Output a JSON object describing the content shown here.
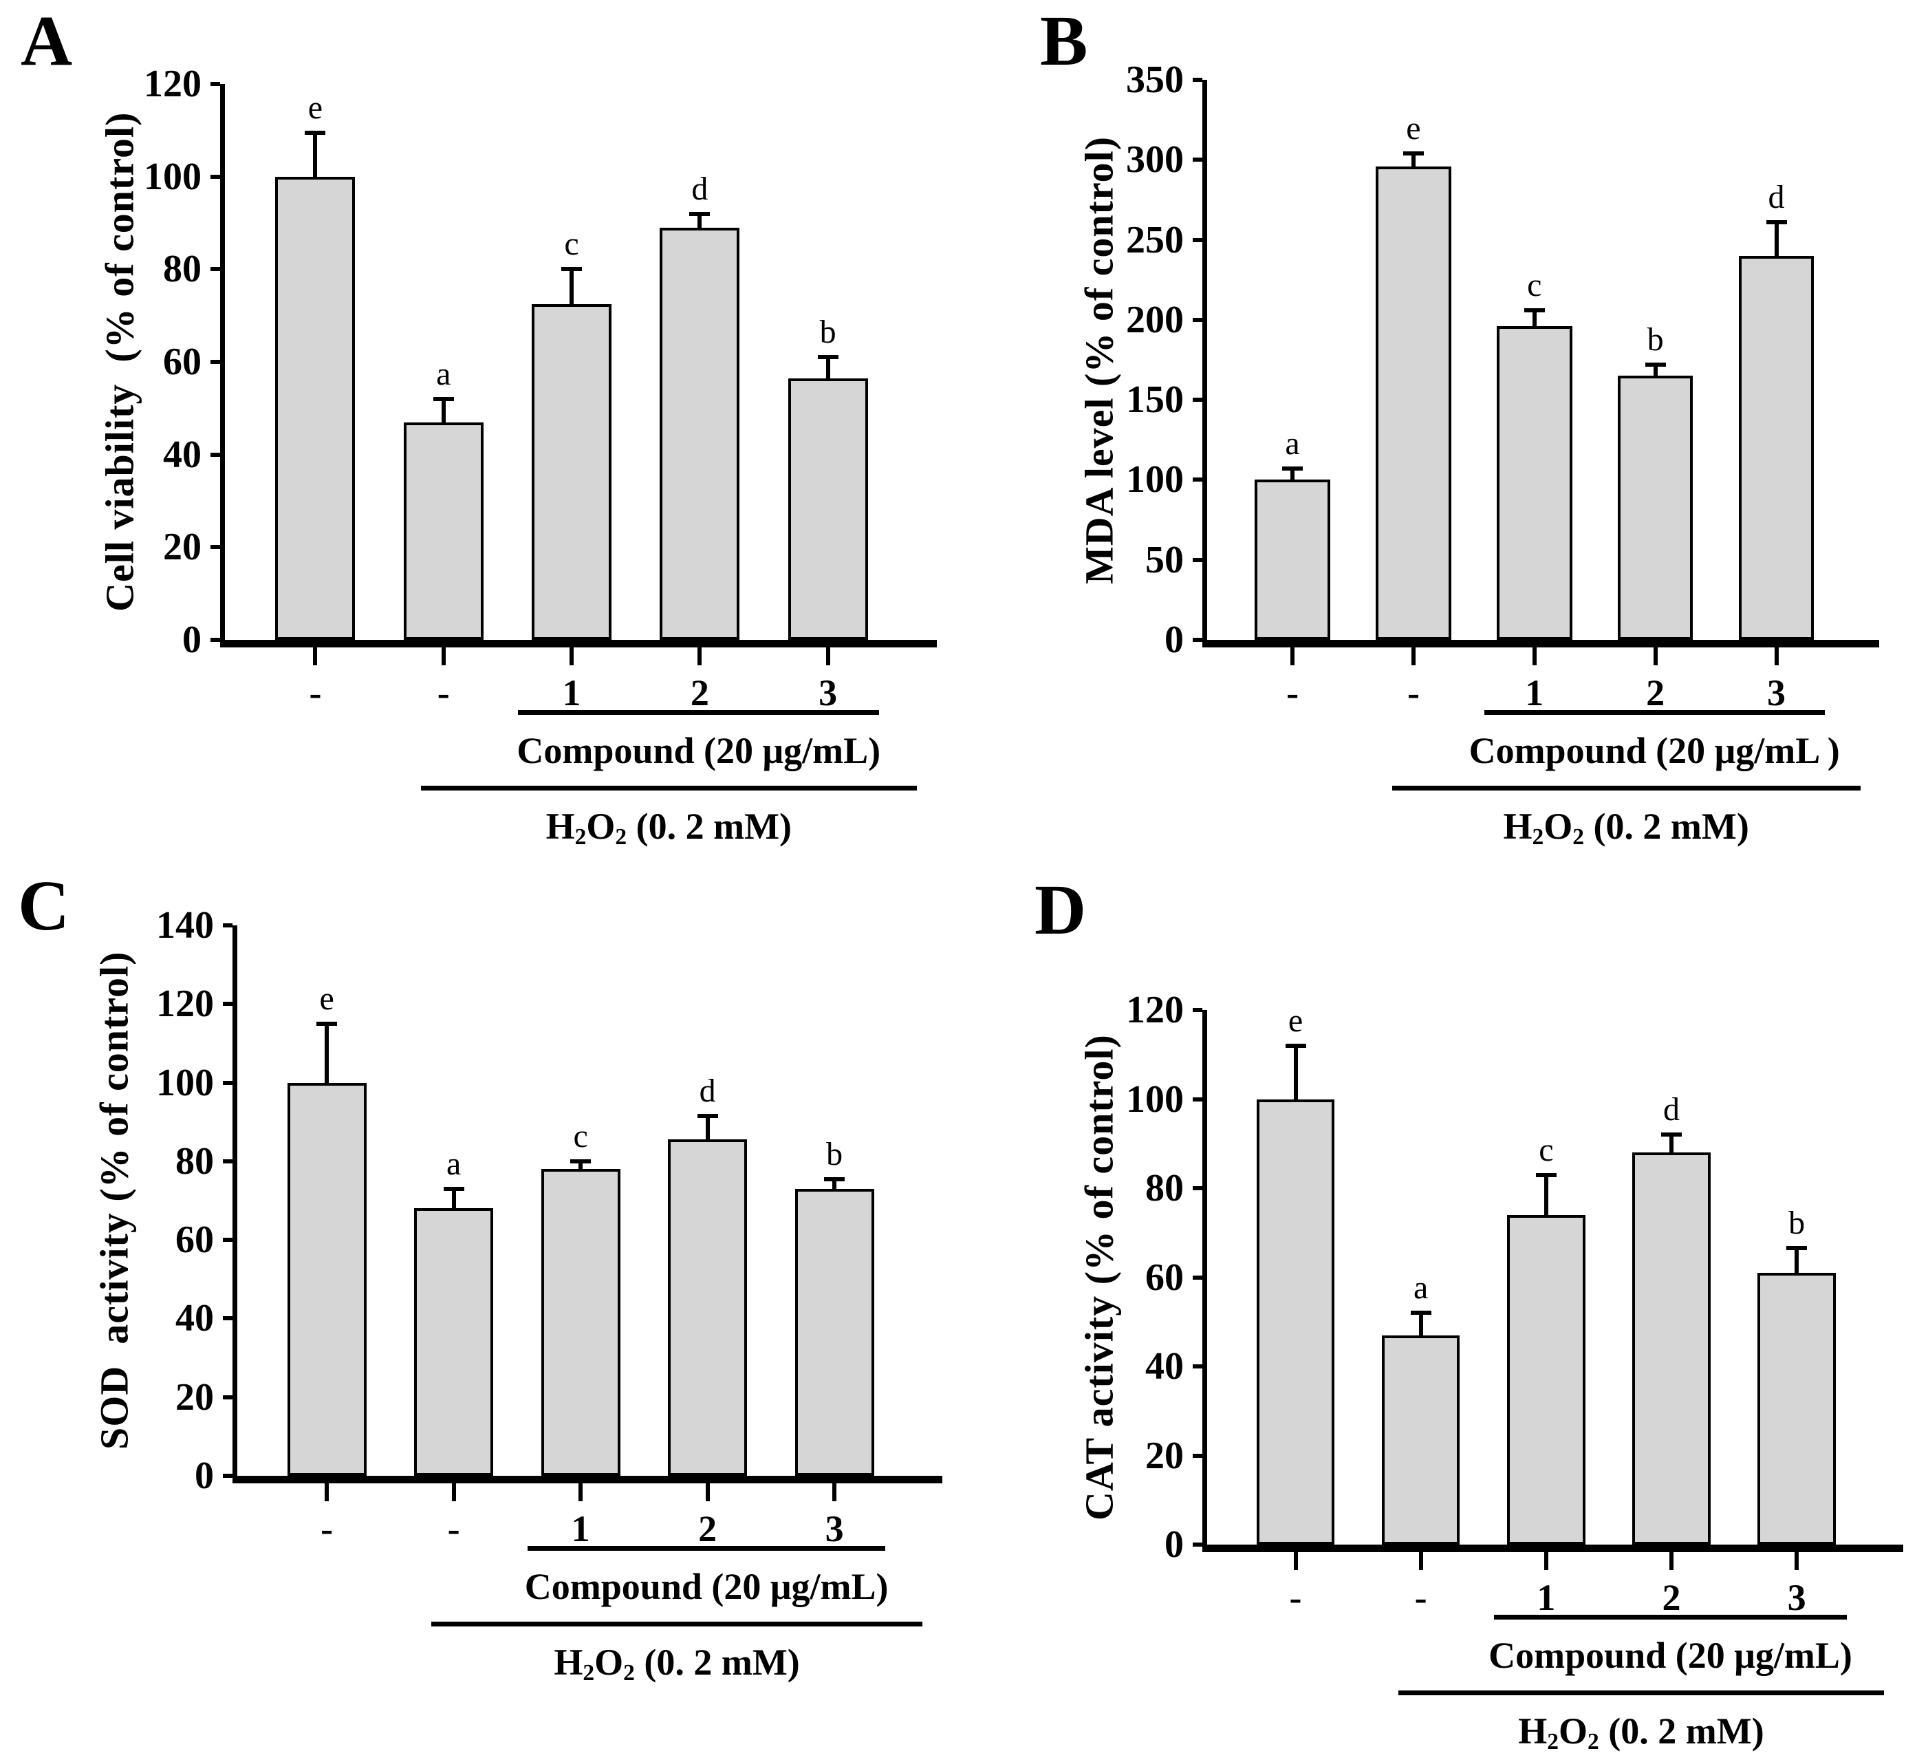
{
  "figure": {
    "background": "#ffffff",
    "bar_fill": "#d6d6d6",
    "bar_border": "#000000",
    "axis_color": "#000000"
  },
  "chart_data": [
    {
      "panel": "A",
      "type": "bar",
      "title": "",
      "ylabel": "Cell viability  (% of control)",
      "xlabel": "",
      "ylim": [
        0,
        120
      ],
      "yticks": [
        0,
        20,
        40,
        60,
        80,
        100,
        120
      ],
      "categories": [
        "-",
        "-",
        "1",
        "2",
        "3"
      ],
      "values": [
        100,
        47,
        72.5,
        89,
        56.5
      ],
      "errors": [
        9.5,
        5,
        7.5,
        3,
        4.5
      ],
      "sig_letters": [
        "e",
        "a",
        "c",
        "d",
        "b"
      ],
      "grid": false,
      "legend": null,
      "group_annotations": [
        {
          "parts": [
            {
              "t": "Compound (20 μg/mL)"
            }
          ],
          "from_bar": 2,
          "to_bar": 4
        },
        {
          "parts": [
            {
              "t": "H"
            },
            {
              "t": "2",
              "sub": true
            },
            {
              "t": "O"
            },
            {
              "t": "2",
              "sub": true
            },
            {
              "t": " (0. 2 mM)"
            }
          ],
          "from_bar": 1,
          "to_bar": 4
        }
      ]
    },
    {
      "panel": "B",
      "type": "bar",
      "title": "",
      "ylabel": "MDA level (% of control)",
      "xlabel": "",
      "ylim": [
        0,
        350
      ],
      "yticks": [
        0,
        50,
        100,
        150,
        200,
        250,
        300,
        350
      ],
      "categories": [
        "-",
        "-",
        "1",
        "2",
        "3"
      ],
      "values": [
        100,
        296,
        196,
        165,
        240
      ],
      "errors": [
        7,
        8,
        10,
        7,
        21
      ],
      "sig_letters": [
        "a",
        "e",
        "c",
        "b",
        "d"
      ],
      "grid": false,
      "legend": null,
      "group_annotations": [
        {
          "parts": [
            {
              "t": "Compound (20 μg/mL )"
            }
          ],
          "from_bar": 2,
          "to_bar": 4
        },
        {
          "parts": [
            {
              "t": "H"
            },
            {
              "t": "2",
              "sub": true
            },
            {
              "t": "O"
            },
            {
              "t": "2",
              "sub": true
            },
            {
              "t": " (0. 2 mM)"
            }
          ],
          "from_bar": 1,
          "to_bar": 4
        }
      ]
    },
    {
      "panel": "C",
      "type": "bar",
      "title": "",
      "ylabel": "SOD  activity (% of control)",
      "xlabel": "",
      "ylim": [
        0,
        140
      ],
      "yticks": [
        0,
        20,
        40,
        60,
        80,
        100,
        120,
        140
      ],
      "categories": [
        "-",
        "-",
        "1",
        "2",
        "3"
      ],
      "values": [
        100,
        68,
        78,
        85.5,
        73
      ],
      "errors": [
        15,
        5,
        2,
        6,
        2.5
      ],
      "sig_letters": [
        "e",
        "a",
        "c",
        "d",
        "b"
      ],
      "grid": false,
      "legend": null,
      "group_annotations": [
        {
          "parts": [
            {
              "t": "Compound (20 μg/mL)"
            }
          ],
          "from_bar": 2,
          "to_bar": 4
        },
        {
          "parts": [
            {
              "t": "H"
            },
            {
              "t": "2",
              "sub": true
            },
            {
              "t": "O"
            },
            {
              "t": "2",
              "sub": true
            },
            {
              "t": " (0. 2 mM)"
            }
          ],
          "from_bar": 1,
          "to_bar": 4
        }
      ]
    },
    {
      "panel": "D",
      "type": "bar",
      "title": "",
      "ylabel": "CAT activity (% of control)",
      "xlabel": "",
      "ylim": [
        0,
        120
      ],
      "yticks": [
        0,
        20,
        40,
        60,
        80,
        100,
        120
      ],
      "categories": [
        "-",
        "-",
        "1",
        "2",
        "3"
      ],
      "values": [
        100,
        47,
        74,
        88,
        61
      ],
      "errors": [
        12,
        5,
        9,
        4,
        5.5
      ],
      "sig_letters": [
        "e",
        "a",
        "c",
        "d",
        "b"
      ],
      "grid": false,
      "legend": null,
      "group_annotations": [
        {
          "parts": [
            {
              "t": "Compound (20 μg/mL)"
            }
          ],
          "from_bar": 2,
          "to_bar": 4
        },
        {
          "parts": [
            {
              "t": "H"
            },
            {
              "t": "2",
              "sub": true
            },
            {
              "t": "O"
            },
            {
              "t": "2",
              "sub": true
            },
            {
              "t": " (0. 2 mM)"
            }
          ],
          "from_bar": 1,
          "to_bar": 4
        }
      ]
    }
  ]
}
